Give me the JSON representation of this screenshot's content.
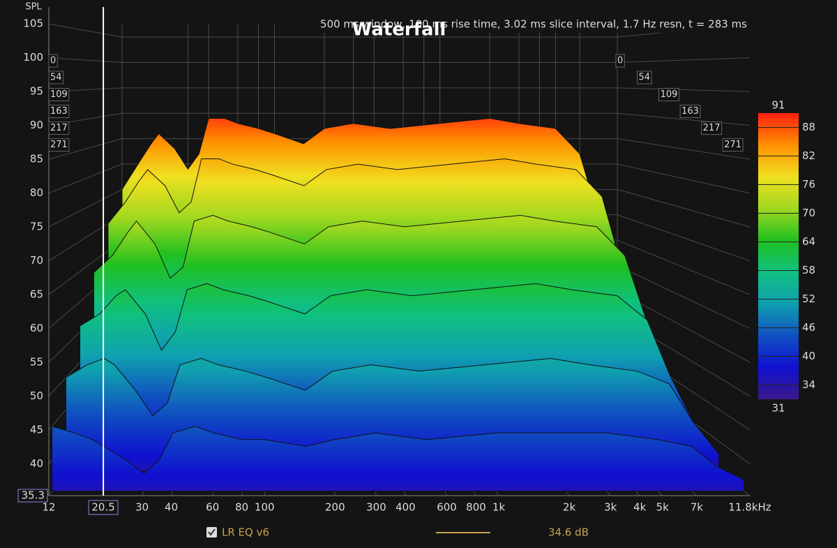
{
  "chart_data": {
    "type": "waterfall",
    "title": "Waterfall",
    "subtitle": "500 ms window, 100 ms rise time, 3.02 ms slice interval, 1.7 Hz resn, t = 283 ms",
    "y_label": "SPL",
    "log_x": true,
    "grid": true,
    "xlim": [
      12,
      11800
    ],
    "xticks": [
      12,
      30,
      40,
      60,
      80,
      100,
      200,
      300,
      400,
      600,
      800,
      {
        "value": 1000,
        "label": "1k"
      },
      {
        "value": 2000,
        "label": "2k"
      },
      {
        "value": 3000,
        "label": "3k"
      },
      {
        "value": 4000,
        "label": "4k"
      },
      {
        "value": 5000,
        "label": "5k"
      },
      {
        "value": 7000,
        "label": "7k"
      },
      {
        "value": 11800,
        "label": "11.8kHz"
      }
    ],
    "ylim": [
      35.3,
      107.5
    ],
    "yticks": [
      40,
      45,
      50,
      55,
      60,
      65,
      70,
      75,
      80,
      85,
      90,
      95,
      100,
      105
    ],
    "zlim": [
      0,
      283
    ],
    "zticks": [
      0,
      54,
      109,
      163,
      217,
      271
    ],
    "x": [
      12,
      15,
      18,
      20,
      25,
      30,
      35,
      40,
      50,
      60,
      80,
      100,
      150,
      200,
      300,
      500,
      1000,
      2000,
      3000,
      5000,
      7000,
      9000,
      11800
    ],
    "slices": [
      [
        75,
        80,
        84,
        86,
        83,
        79,
        82,
        89,
        89,
        88,
        87,
        86,
        84,
        87,
        88,
        87,
        88,
        89,
        88,
        87,
        82,
        70,
        50
      ],
      [
        70,
        74,
        78,
        80,
        77,
        72,
        74,
        82,
        82,
        81,
        80,
        79,
        77,
        80,
        81,
        80,
        81,
        82,
        81,
        80,
        75,
        62,
        45
      ],
      [
        63,
        66,
        70,
        72,
        68,
        62,
        64,
        72,
        73,
        72,
        71,
        70,
        68,
        71,
        72,
        71,
        72,
        73,
        72,
        71,
        66,
        55,
        42
      ],
      [
        56,
        58,
        61,
        62,
        58,
        52,
        55,
        62,
        63,
        62,
        61,
        60,
        58,
        61,
        62,
        61,
        62,
        63,
        62,
        61,
        57,
        48,
        40
      ],
      [
        50,
        52,
        53,
        52,
        48,
        44,
        46,
        52,
        53,
        52,
        51,
        50,
        48,
        51,
        52,
        51,
        52,
        53,
        52,
        51,
        49,
        43,
        38
      ],
      [
        45,
        44,
        43,
        42,
        40,
        38,
        40,
        44,
        45,
        44,
        43,
        43,
        42,
        43,
        44,
        43,
        44,
        44,
        44,
        43,
        42,
        39,
        37
      ]
    ],
    "clim": [
      31,
      91
    ],
    "cticks": [
      34,
      40,
      46,
      52,
      58,
      64,
      70,
      76,
      82,
      88
    ],
    "colorscale": [
      "#3a1a8a",
      "#1010d0",
      "#1050c0",
      "#10a0b0",
      "#10c080",
      "#20c020",
      "#a0d820",
      "#f0e020",
      "#ff9000",
      "#ff2010"
    ],
    "cursor": {
      "x": 20.5,
      "y": 35.3
    },
    "legend": {
      "name": "LR EQ v6",
      "color": "#c9a24e",
      "level": "34.6 dB"
    }
  }
}
